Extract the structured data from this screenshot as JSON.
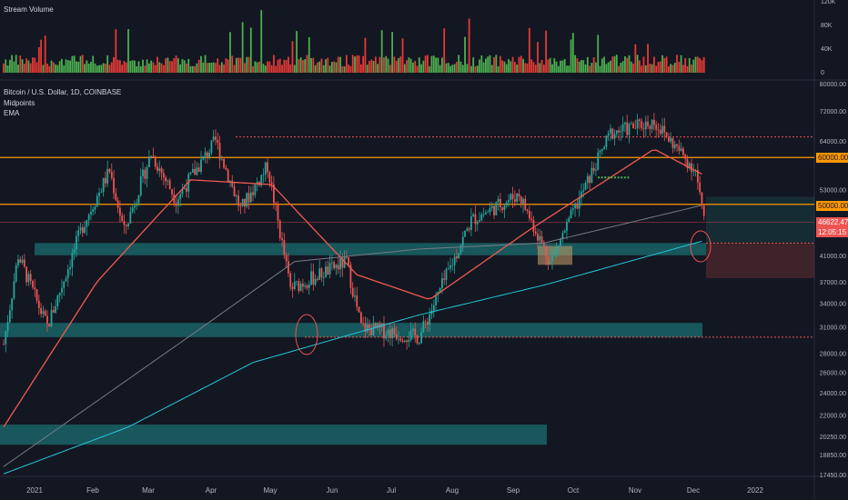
{
  "volume_pane": {
    "title": "Stream Volume",
    "y_ticks": [
      "120K",
      "80K",
      "40K",
      "0"
    ]
  },
  "price_pane": {
    "symbol": "Bitcoin / U.S. Dollar, 1D, COINBASE",
    "indicators": [
      "Midpoints",
      "EMA"
    ],
    "last_price": "46622.47",
    "countdown": "12:05:15",
    "level_tags": [
      "60000.00",
      "50000.00"
    ]
  },
  "colors": {
    "background": "#131722",
    "up": "#26a69a",
    "down": "#ef5350",
    "vol_up": "#4caf50",
    "vol_down": "#e53935",
    "ema_short": "#f05a4f",
    "ema_long": "#2196f3",
    "midpoints": "#787b86",
    "level_line": "#ff9800",
    "zone": "#1e8c8a"
  },
  "chart_data": {
    "type": "candlestick",
    "title": "Bitcoin / U.S. Dollar, 1D, COINBASE",
    "y_scale": "log",
    "y_ticks": [
      80000,
      72000,
      64000,
      60000,
      53000,
      50000,
      46000,
      41000,
      37000,
      34000,
      31000,
      28000,
      26000,
      24000,
      22000,
      20250,
      18850,
      17450
    ],
    "x_ticks": [
      "2021",
      "Feb",
      "Mar",
      "Apr",
      "May",
      "Jun",
      "Jul",
      "Aug",
      "Sep",
      "Oct",
      "Nov",
      "Dec",
      "2022"
    ],
    "ylim": [
      17000,
      80000
    ],
    "horizontal_levels": [
      60000,
      50000
    ],
    "dotted_levels": [
      65000,
      43000,
      29800
    ],
    "support_zones": [
      [
        41000,
        43000
      ],
      [
        29800,
        31500
      ],
      [
        19600,
        21200
      ]
    ],
    "price_path_keypoints": [
      {
        "date": "2021-01-01",
        "price": 29000
      },
      {
        "date": "2021-01-08",
        "price": 41000
      },
      {
        "date": "2021-01-22",
        "price": 31000
      },
      {
        "date": "2021-02-08",
        "price": 46000
      },
      {
        "date": "2021-02-21",
        "price": 57000
      },
      {
        "date": "2021-02-28",
        "price": 45000
      },
      {
        "date": "2021-03-13",
        "price": 61000
      },
      {
        "date": "2021-03-25",
        "price": 51000
      },
      {
        "date": "2021-04-13",
        "price": 64000
      },
      {
        "date": "2021-04-25",
        "price": 49000
      },
      {
        "date": "2021-05-08",
        "price": 58000
      },
      {
        "date": "2021-05-19",
        "price": 36000
      },
      {
        "date": "2021-06-15",
        "price": 40000
      },
      {
        "date": "2021-06-22",
        "price": 31000
      },
      {
        "date": "2021-07-20",
        "price": 29800
      },
      {
        "date": "2021-08-14",
        "price": 47000
      },
      {
        "date": "2021-09-06",
        "price": 52000
      },
      {
        "date": "2021-09-21",
        "price": 40000
      },
      {
        "date": "2021-10-20",
        "price": 66000
      },
      {
        "date": "2021-11-10",
        "price": 69000
      },
      {
        "date": "2021-11-30",
        "price": 57000
      },
      {
        "date": "2021-12-04",
        "price": 46622
      }
    ],
    "ema_path_keypoints": [
      {
        "date": "2021-01-01",
        "price": 21000
      },
      {
        "date": "2021-02-15",
        "price": 37000
      },
      {
        "date": "2021-04-01",
        "price": 55000
      },
      {
        "date": "2021-05-10",
        "price": 54000
      },
      {
        "date": "2021-06-20",
        "price": 38000
      },
      {
        "date": "2021-07-25",
        "price": 34500
      },
      {
        "date": "2021-09-10",
        "price": 45000
      },
      {
        "date": "2021-11-10",
        "price": 62000
      },
      {
        "date": "2021-12-04",
        "price": 56000
      }
    ]
  }
}
